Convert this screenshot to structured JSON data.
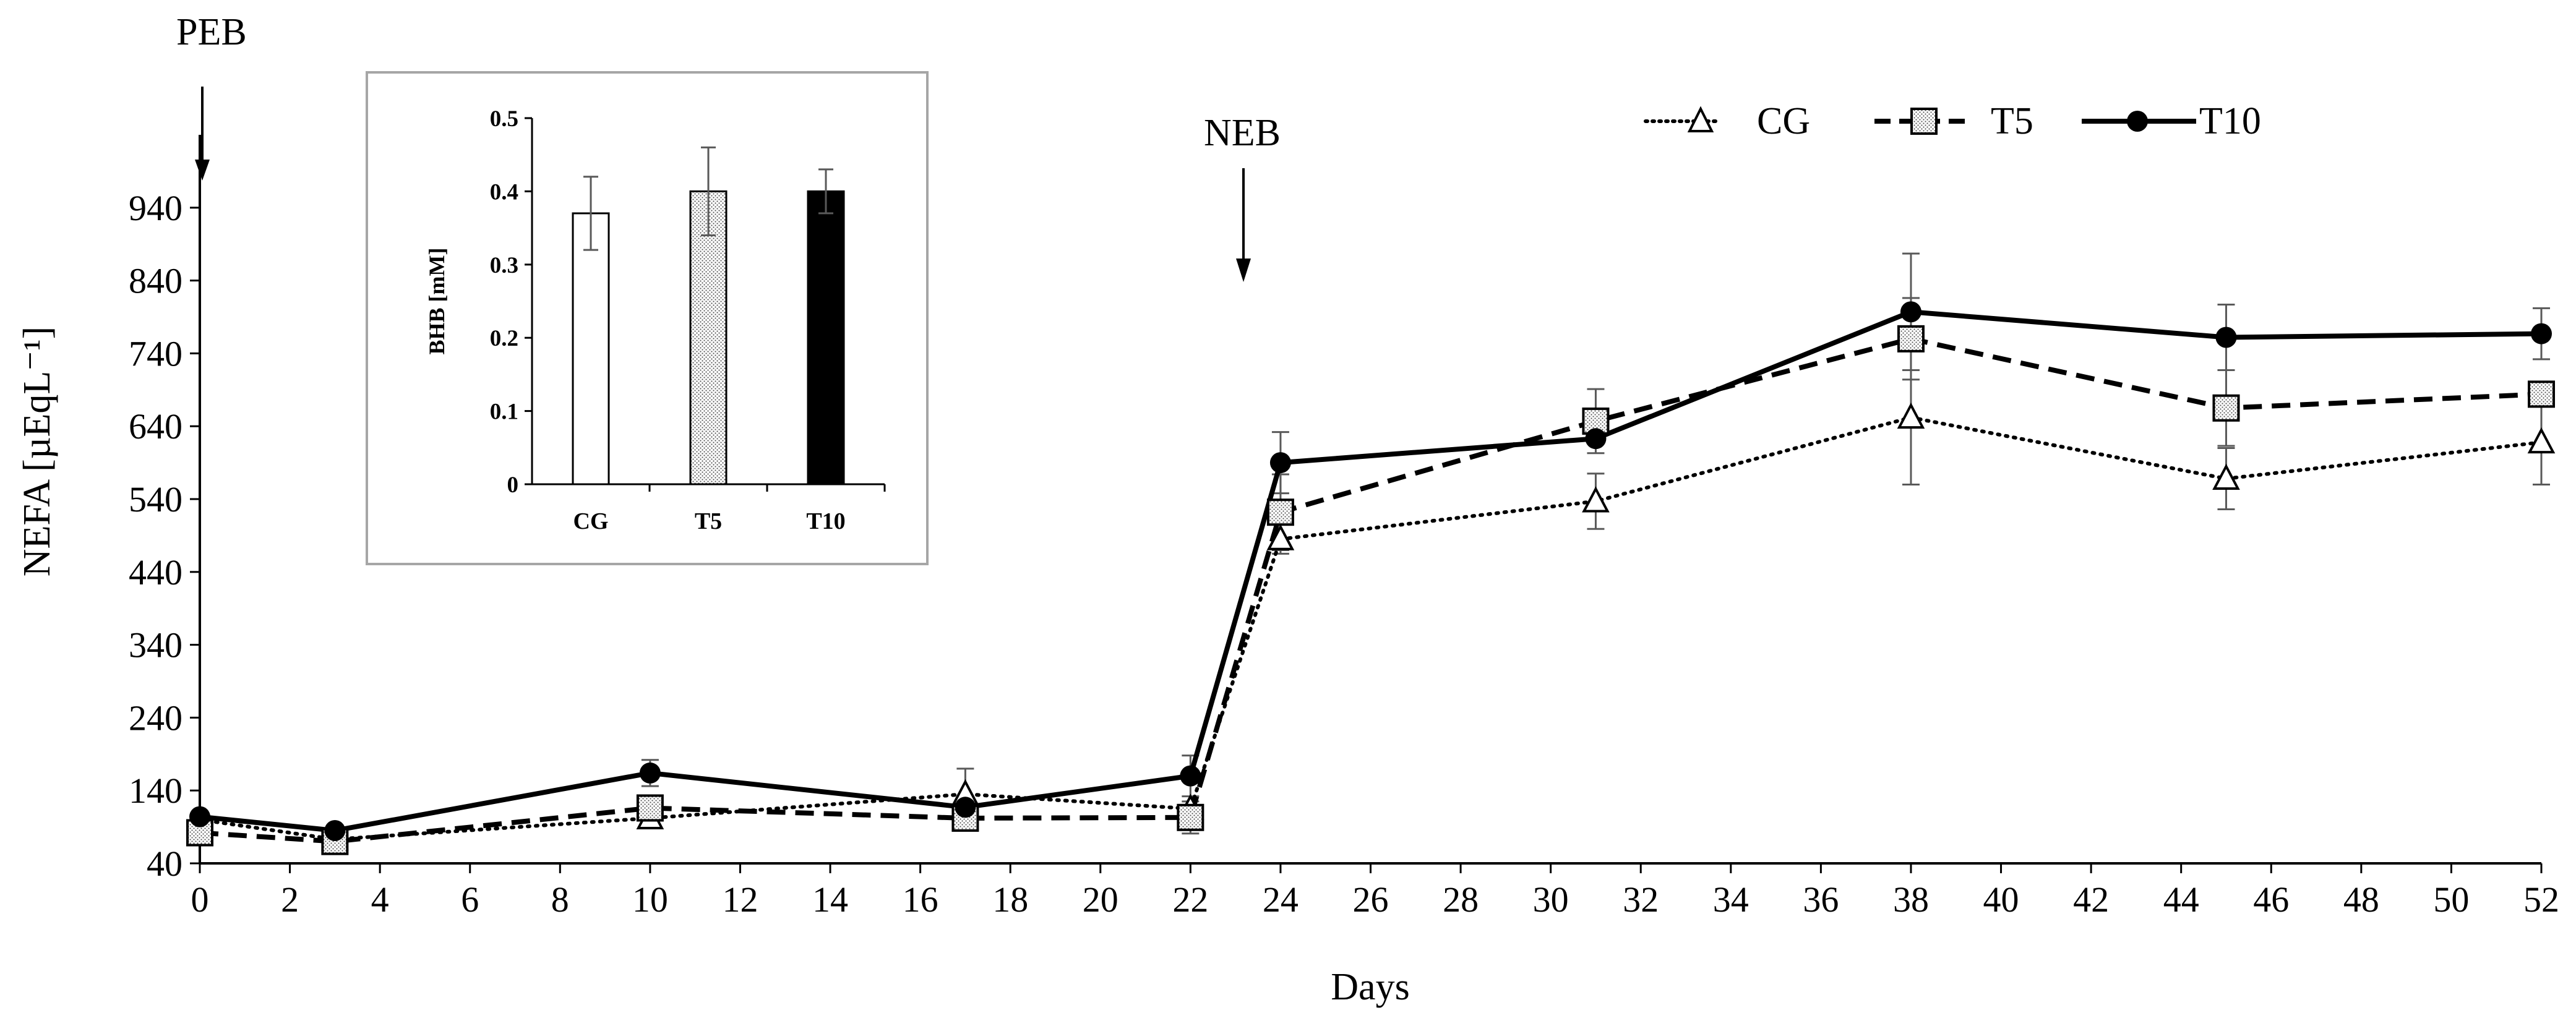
{
  "chart_data": {
    "type": "line",
    "xlabel": "Days",
    "ylabel": "NEFA [µEqL⁻¹]",
    "xlim": [
      0,
      52
    ],
    "ylim": [
      40,
      1040
    ],
    "x_ticks": [
      0,
      2,
      4,
      6,
      8,
      10,
      12,
      14,
      16,
      18,
      20,
      22,
      24,
      26,
      28,
      30,
      32,
      34,
      36,
      38,
      40,
      42,
      44,
      46,
      48,
      50,
      52
    ],
    "y_ticks": [
      40,
      140,
      240,
      340,
      440,
      540,
      640,
      740,
      840,
      940
    ],
    "grid": false,
    "legend_position": "top-right",
    "annotations": [
      {
        "text": "PEB",
        "x": 0
      },
      {
        "text": "NEB",
        "x": 23
      }
    ],
    "series": [
      {
        "name": "CG",
        "style": "dotted",
        "marker": "triangle",
        "x": [
          0,
          3,
          10,
          17,
          22,
          24,
          31,
          38,
          45,
          52
        ],
        "y": [
          100,
          73,
          102,
          135,
          115,
          485,
          537,
          652,
          568,
          618
        ],
        "err": [
          0,
          0,
          10,
          35,
          0,
          20,
          38,
          92,
          42,
          58
        ]
      },
      {
        "name": "T5",
        "style": "dashed",
        "marker": "square",
        "x": [
          0,
          3,
          10,
          17,
          22,
          24,
          31,
          38,
          45,
          52
        ],
        "y": [
          82,
          70,
          116,
          102,
          103,
          522,
          647,
          760,
          665,
          684
        ],
        "err": [
          0,
          0,
          15,
          0,
          22,
          52,
          44,
          56,
          52,
          0
        ]
      },
      {
        "name": "T10",
        "style": "solid",
        "marker": "circle",
        "x": [
          0,
          3,
          10,
          17,
          22,
          24,
          31,
          38,
          45,
          52
        ],
        "y": [
          104,
          85,
          164,
          117,
          160,
          590,
          623,
          797,
          762,
          767
        ],
        "err": [
          0,
          0,
          18,
          0,
          28,
          42,
          0,
          80,
          45,
          35
        ]
      }
    ],
    "inset": {
      "type": "bar",
      "categories": [
        "CG",
        "T5",
        "T10"
      ],
      "values": [
        0.37,
        0.4,
        0.4
      ],
      "errors": [
        0.05,
        0.06,
        0.03
      ],
      "ylabel": "BHB [mM]",
      "ylim": [
        0,
        0.5
      ],
      "y_ticks": [
        0,
        0.1,
        0.2,
        0.3,
        0.4,
        0.5
      ],
      "fills": [
        "#ffffff",
        "#e6e6e6",
        "#000000"
      ]
    }
  }
}
